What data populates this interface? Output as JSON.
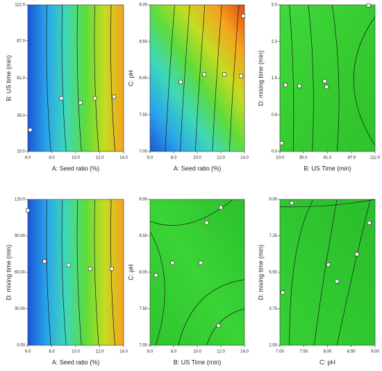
{
  "chart_data": [
    {
      "type": "contour",
      "x_label": "A: Seed ratio (%)",
      "y_label": "B: US time (min)",
      "xlim": [
        6,
        14
      ],
      "ylim": [
        10,
        112
      ],
      "xticks": [
        {
          "value": 6,
          "label": "6.0"
        },
        {
          "value": 8,
          "label": "8.0"
        },
        {
          "value": 10,
          "label": "10.0"
        },
        {
          "value": 12,
          "label": "12.0"
        },
        {
          "value": 14,
          "label": "14.0"
        }
      ],
      "yticks": [
        {
          "value": 10,
          "label": "10.0"
        },
        {
          "value": 35,
          "label": "35.0"
        },
        {
          "value": 61,
          "label": "61.0"
        },
        {
          "value": 87,
          "label": "87.0"
        },
        {
          "value": 112,
          "label": "112.0"
        }
      ],
      "colors": [
        "#1c55d6",
        "#2aa6ea",
        "#3ed8b8",
        "#5cdc3c",
        "#c4dc22",
        "#f5a41e"
      ],
      "points": {
        "x": [
          6.2,
          8.8,
          10.4,
          11.6,
          13.2
        ],
        "y": [
          25,
          47,
          44,
          47,
          48
        ]
      }
    },
    {
      "type": "contour",
      "x_label": "A: Seed ratio (%)",
      "y_label": "C: pH",
      "xlim": [
        6,
        14
      ],
      "ylim": [
        7,
        9
      ],
      "xticks": [
        {
          "value": 6,
          "label": "6.0"
        },
        {
          "value": 8,
          "label": "8.0"
        },
        {
          "value": 10,
          "label": "10.0"
        },
        {
          "value": 12,
          "label": "12.0"
        },
        {
          "value": 14,
          "label": "14.0"
        }
      ],
      "yticks": [
        {
          "value": 7,
          "label": "7.00"
        },
        {
          "value": 7.5,
          "label": "7.50"
        },
        {
          "value": 8,
          "label": "8.00"
        },
        {
          "value": 8.5,
          "label": "8.50"
        },
        {
          "value": 9,
          "label": "9.00"
        }
      ],
      "colors": [
        "#1c55d6",
        "#2aa6ea",
        "#3ed8b8",
        "#5cdc3c",
        "#c4dc22",
        "#f5a41e",
        "#e64612"
      ],
      "points": {
        "x": [
          8.6,
          10.6,
          12.3,
          13.7,
          13.9
        ],
        "y": [
          7.95,
          8.05,
          8.05,
          8.03,
          8.85
        ]
      }
    },
    {
      "type": "contour",
      "x_label": "B: US Time (min)",
      "y_label": "D: mixing time (min)",
      "xlim": [
        10,
        112
      ],
      "ylim": [
        0,
        3
      ],
      "xticks": [
        {
          "value": 10,
          "label": "10.0"
        },
        {
          "value": 35,
          "label": "35.0"
        },
        {
          "value": 61,
          "label": "61.0"
        },
        {
          "value": 87,
          "label": "87.0"
        },
        {
          "value": 112,
          "label": "112.0"
        }
      ],
      "yticks": [
        {
          "value": 0,
          "label": "0.0"
        },
        {
          "value": 0.75,
          "label": "0.8"
        },
        {
          "value": 1.5,
          "label": "1.5"
        },
        {
          "value": 2.25,
          "label": "2.3"
        },
        {
          "value": 3,
          "label": "3.0"
        }
      ],
      "colors": [
        "#40d83c",
        "#36cc30",
        "#2ec22c"
      ],
      "points": {
        "x": [
          12,
          16,
          31,
          58,
          60,
          105
        ],
        "y": [
          0.17,
          1.36,
          1.34,
          1.44,
          1.32,
          2.99
        ]
      }
    },
    {
      "type": "contour",
      "x_label": "A: Seed ratio (%)",
      "y_label": "D: mixing time (min)",
      "xlim": [
        6,
        14
      ],
      "ylim": [
        0,
        120
      ],
      "xticks": [
        {
          "value": 6,
          "label": "6.0"
        },
        {
          "value": 8,
          "label": "8.0"
        },
        {
          "value": 10,
          "label": "10.0"
        },
        {
          "value": 12,
          "label": "12.0"
        },
        {
          "value": 14,
          "label": "14.0"
        }
      ],
      "yticks": [
        {
          "value": 0,
          "label": "0.00"
        },
        {
          "value": 30,
          "label": "30.00"
        },
        {
          "value": 60,
          "label": "60.00"
        },
        {
          "value": 90,
          "label": "90.00"
        },
        {
          "value": 120,
          "label": "120.0"
        }
      ],
      "colors": [
        "#1c55d6",
        "#2aa6ea",
        "#3ed8b8",
        "#5cdc3c",
        "#c4dc22",
        "#f5a41e"
      ],
      "points": {
        "x": [
          6.0,
          7.4,
          9.4,
          11.2,
          13.0
        ],
        "y": [
          111,
          69,
          66,
          63,
          63
        ]
      }
    },
    {
      "type": "contour",
      "x_label": "B: US Time (min)",
      "y_label": "C: pH",
      "xlim": [
        6,
        14
      ],
      "ylim": [
        7,
        9
      ],
      "xticks": [
        {
          "value": 6,
          "label": "6.0"
        },
        {
          "value": 8,
          "label": "8.0"
        },
        {
          "value": 10,
          "label": "10.0"
        },
        {
          "value": 12,
          "label": "12.0"
        },
        {
          "value": 14,
          "label": "14.0"
        }
      ],
      "yticks": [
        {
          "value": 7,
          "label": "7.00"
        },
        {
          "value": 7.5,
          "label": "7.50"
        },
        {
          "value": 8,
          "label": "8.00"
        },
        {
          "value": 8.5,
          "label": "8.50"
        },
        {
          "value": 9,
          "label": "9.00"
        }
      ],
      "colors": [
        "#2ec42e",
        "#3ad436",
        "#2cc02c"
      ],
      "points": {
        "x": [
          6.5,
          7.9,
          10.3,
          10.8,
          12.0,
          11.8
        ],
        "y": [
          7.96,
          8.13,
          8.13,
          8.68,
          8.89,
          7.27
        ]
      }
    },
    {
      "type": "contour",
      "x_label": "C: pH",
      "y_label": "D: mixing time (min)",
      "xlim": [
        7,
        9
      ],
      "ylim": [
        2,
        9
      ],
      "xticks": [
        {
          "value": 7,
          "label": "7.00"
        },
        {
          "value": 7.5,
          "label": "7.50"
        },
        {
          "value": 8,
          "label": "8.00"
        },
        {
          "value": 8.5,
          "label": "8.50"
        },
        {
          "value": 9,
          "label": "9.00"
        }
      ],
      "yticks": [
        {
          "value": 2,
          "label": "2.00"
        },
        {
          "value": 3.75,
          "label": "3.75"
        },
        {
          "value": 5.5,
          "label": "5.50"
        },
        {
          "value": 7.25,
          "label": "7.25"
        },
        {
          "value": 9,
          "label": "9.00"
        }
      ],
      "colors": [
        "#36d034",
        "#30c630",
        "#2abe2a"
      ],
      "points": {
        "x": [
          7.25,
          7.06,
          8.02,
          8.2,
          8.62,
          8.88
        ],
        "y": [
          8.83,
          4.53,
          5.87,
          5.07,
          6.37,
          7.87
        ]
      }
    }
  ]
}
